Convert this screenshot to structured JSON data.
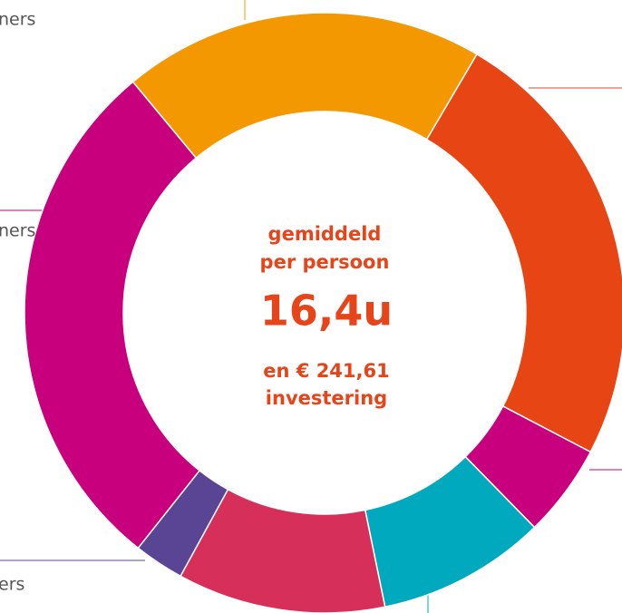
{
  "chart_data": {
    "type": "donut",
    "values": [
      19.5,
      24.2,
      5.0,
      9.1,
      11.2,
      2.7,
      28.3
    ],
    "colors": [
      "#f39800",
      "#e84515",
      "#c8007e",
      "#00a9bd",
      "#d6305a",
      "#5a4595",
      "#c8007e"
    ],
    "start_angle": 320.3,
    "center_text": [
      "gemiddeld",
      "per persoon",
      "16,4u",
      "en € 241,61",
      "investering"
    ],
    "side_labels": [
      "ners",
      "ners",
      "ers"
    ]
  }
}
